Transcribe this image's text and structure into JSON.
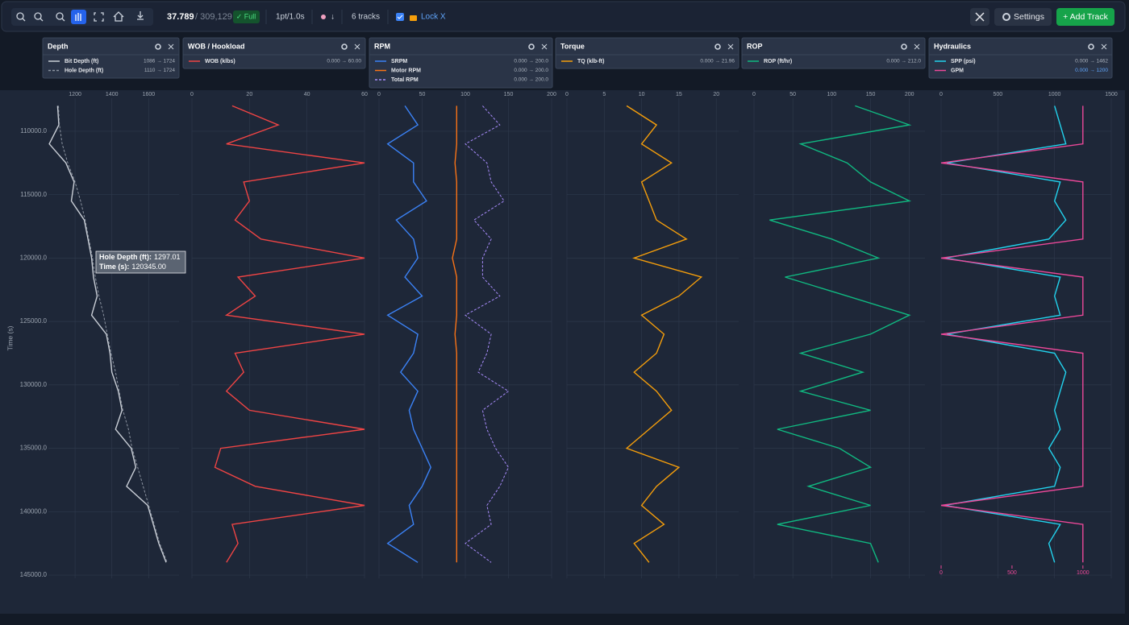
{
  "toolbar": {
    "visible": "37.789",
    "total": "/ 309,129",
    "mode": "✓ Full",
    "resolution": "1pt/1.0s",
    "direction": "↓",
    "tracks": "6 tracks",
    "lock": "Lock X",
    "settings": "Settings",
    "add": "+ Add Track"
  },
  "time": {
    "label": "Time (s)",
    "lim": [
      107400,
      145250
    ],
    "ticks": [
      {
        "value": 110000,
        "label": "110000.0"
      },
      {
        "value": 115000,
        "label": "115000.0"
      },
      {
        "value": 120000,
        "label": "120000.0"
      },
      {
        "value": 125000,
        "label": "125000.0"
      },
      {
        "value": 130000,
        "label": "130000.0"
      },
      {
        "value": 135000,
        "label": "135000.0"
      },
      {
        "value": 140000,
        "label": "140000.0"
      },
      {
        "value": 145000,
        "label": "145000.0"
      }
    ],
    "values": [
      108000,
      109500,
      111000,
      112500,
      114000,
      115500,
      117000,
      118500,
      120000,
      121500,
      123000,
      124500,
      126000,
      127500,
      129000,
      130500,
      132000,
      133500,
      135000,
      136500,
      138000,
      139500,
      141000,
      142500,
      144000
    ]
  },
  "tracks": [
    {
      "title": "Depth",
      "xlim": [
        1055,
        1765
      ],
      "xticks": [
        1200,
        1400,
        1600
      ],
      "series": [
        {
          "name": "Bit Depth (ft)",
          "range": "1086 → 1724",
          "color": "#c9ced6",
          "dash": false,
          "values": [
            1105,
            1112,
            1060,
            1150,
            1195,
            1180,
            1250,
            1270,
            1290,
            1300,
            1320,
            1290,
            1370,
            1390,
            1400,
            1435,
            1455,
            1420,
            1505,
            1530,
            1480,
            1595,
            1625,
            1655,
            1695
          ]
        },
        {
          "name": "Hole Depth (ft)",
          "range": "1110 → 1724",
          "color": "#8b93a0",
          "dash": true,
          "values": [
            1110,
            1115,
            1130,
            1160,
            1200,
            1230,
            1255,
            1275,
            1295,
            1310,
            1330,
            1355,
            1375,
            1395,
            1420,
            1440,
            1460,
            1490,
            1510,
            1540,
            1570,
            1600,
            1630,
            1660,
            1700
          ]
        }
      ]
    },
    {
      "title": "WOB / Hookload",
      "xlim": [
        0,
        60
      ],
      "xticks": [
        0,
        20,
        40,
        60
      ],
      "series": [
        {
          "name": "WOB (klbs)",
          "range": "0.000 → 60.00",
          "color": "#ef4444",
          "dash": false,
          "values": [
            14,
            30,
            12,
            60,
            18,
            20,
            15,
            24,
            60,
            16,
            22,
            12,
            60,
            15,
            18,
            12,
            20,
            60,
            10,
            8,
            22,
            60,
            14,
            16,
            12
          ]
        }
      ]
    },
    {
      "title": "RPM",
      "xlim": [
        0,
        200
      ],
      "xticks": [
        0,
        50,
        100,
        150,
        200
      ],
      "series": [
        {
          "name": "SRPM",
          "range": "0.000 → 200.0",
          "color": "#3b82f6",
          "dash": false,
          "values": [
            30,
            45,
            10,
            40,
            40,
            55,
            20,
            40,
            45,
            30,
            50,
            10,
            45,
            40,
            25,
            45,
            35,
            40,
            50,
            60,
            50,
            35,
            40,
            10,
            45
          ]
        },
        {
          "name": "Motor RPM",
          "range": "0.000 → 200.0",
          "color": "#f97316",
          "dash": false,
          "values": [
            90,
            90,
            90,
            88,
            90,
            90,
            90,
            90,
            85,
            90,
            90,
            90,
            88,
            90,
            90,
            90,
            90,
            90,
            90,
            90,
            90,
            90,
            90,
            90,
            90
          ]
        },
        {
          "name": "Total RPM",
          "range": "0.000 → 200.0",
          "color": "#a78bfa",
          "dash": true,
          "values": [
            120,
            140,
            100,
            125,
            130,
            145,
            110,
            130,
            120,
            120,
            140,
            100,
            130,
            125,
            115,
            150,
            120,
            125,
            135,
            150,
            140,
            125,
            130,
            100,
            130
          ]
        }
      ]
    },
    {
      "title": "Torque",
      "xlim": [
        0,
        23
      ],
      "xticks": [
        0,
        5,
        10,
        15,
        20
      ],
      "series": [
        {
          "name": "TQ (klb-ft)",
          "range": "0.000 → 21.96",
          "color": "#f59e0b",
          "dash": false,
          "values": [
            8,
            12,
            10,
            14,
            10,
            11,
            12,
            16,
            9,
            18,
            15,
            10,
            13,
            12,
            9,
            12,
            14,
            11,
            8,
            15,
            12,
            10,
            13,
            9,
            11
          ]
        }
      ]
    },
    {
      "title": "ROP",
      "xlim": [
        0,
        220
      ],
      "xticks": [
        0,
        50,
        100,
        150,
        200
      ],
      "series": [
        {
          "name": "ROP (ft/hr)",
          "range": "0.000 → 212.0",
          "color": "#10b981",
          "dash": false,
          "values": [
            130,
            200,
            60,
            120,
            150,
            200,
            20,
            100,
            160,
            40,
            120,
            200,
            150,
            60,
            140,
            60,
            150,
            30,
            110,
            150,
            70,
            150,
            30,
            150,
            160
          ]
        }
      ]
    },
    {
      "title": "Hydraulics",
      "xlim": [
        0,
        1500
      ],
      "xticks": [
        0,
        500,
        1000,
        1500
      ],
      "x2lim": [
        0,
        1200
      ],
      "x2ticks": [
        0,
        500,
        1000
      ],
      "series": [
        {
          "name": "SPP (psi)",
          "range": "0.000 → 1462",
          "color": "#22d3ee",
          "dash": false,
          "values": [
            1000,
            1050,
            1100,
            50,
            1050,
            1000,
            1100,
            950,
            40,
            1050,
            1000,
            1050,
            50,
            1000,
            1100,
            1050,
            1000,
            1050,
            950,
            1050,
            1000,
            30,
            1050,
            950,
            1000
          ]
        },
        {
          "name": "GPM",
          "range": "0.000 → 1200",
          "color": "#ec4899",
          "dash": false,
          "axis": "x2",
          "values": [
            1000,
            1000,
            1000,
            0,
            1000,
            1000,
            1000,
            1000,
            0,
            1000,
            1000,
            1000,
            0,
            1000,
            1000,
            1000,
            1000,
            1000,
            1000,
            1000,
            1000,
            0,
            1000,
            1000,
            1000
          ]
        }
      ]
    }
  ],
  "tooltip": {
    "label1": "Hole Depth (ft):",
    "value1": "1297.01",
    "label2": "Time (s):",
    "value2": "120345.00"
  }
}
